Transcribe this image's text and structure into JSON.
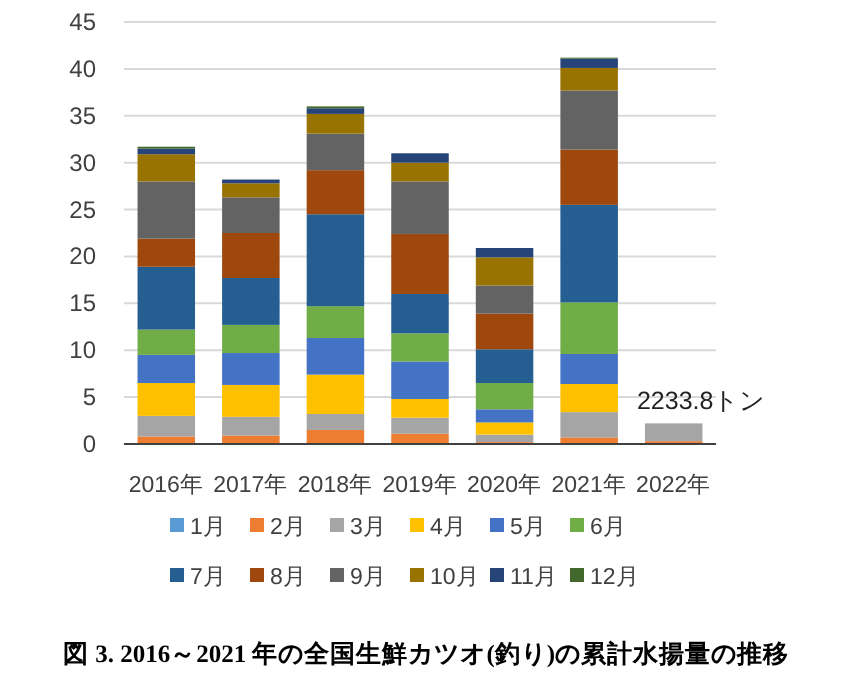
{
  "chart_data": {
    "type": "bar",
    "stacked": true,
    "title": "図 3. 2016～2021 年の全国生鮮カツオ(釣り)の累計水揚量の推移",
    "categories": [
      "2016年",
      "2017年",
      "2018年",
      "2019年",
      "2020年",
      "2021年",
      "2022年"
    ],
    "ylim": [
      0,
      45
    ],
    "yticks": [
      0,
      5,
      10,
      15,
      20,
      25,
      30,
      35,
      40,
      45
    ],
    "grid": "y",
    "legend": "bottom",
    "annotations": [
      {
        "text": "2233.8トン",
        "x": "2022年",
        "y": 2.23
      }
    ],
    "series": [
      {
        "name": "1月",
        "color": "#5b9bd5",
        "values": [
          null,
          null,
          null,
          null,
          null,
          null,
          null
        ]
      },
      {
        "name": "2月",
        "color": "#ed7d31",
        "values": [
          0.8,
          0.9,
          1.5,
          1.1,
          0.2,
          0.7,
          0.3
        ]
      },
      {
        "name": "3月",
        "color": "#a5a5a5",
        "values": [
          2.2,
          2.0,
          1.7,
          1.7,
          0.8,
          2.7,
          1.9
        ]
      },
      {
        "name": "4月",
        "color": "#ffc000",
        "values": [
          3.5,
          3.4,
          4.2,
          2.0,
          1.3,
          3.0,
          null
        ]
      },
      {
        "name": "5月",
        "color": "#4472c4",
        "values": [
          3.0,
          3.4,
          3.9,
          4.0,
          1.4,
          3.2,
          null
        ]
      },
      {
        "name": "6月",
        "color": "#70ad47",
        "values": [
          2.7,
          3.0,
          3.4,
          3.0,
          2.8,
          5.5,
          null
        ]
      },
      {
        "name": "7月",
        "color": "#255e91",
        "values": [
          6.7,
          5.0,
          9.8,
          4.2,
          3.6,
          10.4,
          null
        ]
      },
      {
        "name": "8月",
        "color": "#9e480e",
        "values": [
          3.0,
          4.8,
          4.7,
          6.4,
          3.8,
          5.9,
          null
        ]
      },
      {
        "name": "9月",
        "color": "#636363",
        "values": [
          6.1,
          3.8,
          3.9,
          5.6,
          3.0,
          6.3,
          null
        ]
      },
      {
        "name": "10月",
        "color": "#997300",
        "values": [
          2.9,
          1.5,
          2.1,
          2.0,
          3.0,
          2.4,
          null
        ]
      },
      {
        "name": "11月",
        "color": "#264478",
        "values": [
          0.6,
          0.4,
          0.6,
          1.0,
          1.0,
          1.0,
          null
        ]
      },
      {
        "name": "12月",
        "color": "#43682b",
        "values": [
          0.2,
          0,
          0.2,
          0,
          0,
          0.1,
          null
        ]
      }
    ]
  }
}
